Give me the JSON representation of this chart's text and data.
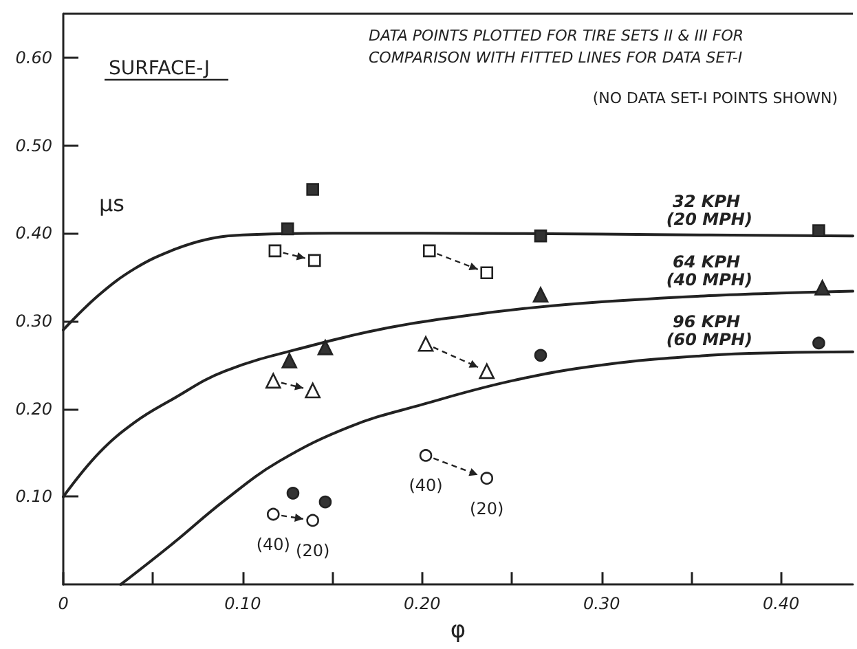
{
  "chart_data": {
    "type": "scatter",
    "title": "SURFACE-J",
    "xlabel": "φ",
    "ylabel": "μs",
    "annotations": [
      "DATA POINTS PLOTTED FOR TIRE SETS II & III FOR COMPARISON WITH FITTED LINES FOR DATA SET-I",
      "(NO DATA SET-I POINTS SHOWN)",
      {
        "text": "(40)",
        "x": 0.117,
        "y": 0.08
      },
      {
        "text": "(20)",
        "x": 0.139,
        "y": 0.073
      },
      {
        "text": "(40)",
        "x": 0.202,
        "y": 0.147
      },
      {
        "text": "(20)",
        "x": 0.236,
        "y": 0.121
      }
    ],
    "xlim": [
      0,
      0.44
    ],
    "ylim": [
      0,
      0.65
    ],
    "xticks": [
      {
        "value": 0,
        "label": "0"
      },
      {
        "value": 0.05,
        "label": null
      },
      {
        "value": 0.1,
        "label": "0.10"
      },
      {
        "value": 0.15,
        "label": null
      },
      {
        "value": 0.2,
        "label": "0.20"
      },
      {
        "value": 0.25,
        "label": null
      },
      {
        "value": 0.3,
        "label": "0.30"
      },
      {
        "value": 0.35,
        "label": null
      },
      {
        "value": 0.4,
        "label": "0.40"
      }
    ],
    "yticks": [
      {
        "value": 0.1,
        "label": "0.10"
      },
      {
        "value": 0.2,
        "label": "0.20"
      },
      {
        "value": 0.3,
        "label": "0.30"
      },
      {
        "value": 0.4,
        "label": "0.40"
      },
      {
        "value": 0.5,
        "label": "0.50"
      },
      {
        "value": 0.6,
        "label": "0.60"
      }
    ],
    "series": [
      {
        "type": "line",
        "name": "32 KPH (20 MPH)",
        "color": "#222222",
        "marker": "none",
        "line_style": "solid",
        "x": [
          0,
          0.02,
          0.04,
          0.06,
          0.08,
          0.1,
          0.15,
          0.2,
          0.3,
          0.36,
          0.44
        ],
        "values": [
          0.29,
          0.33,
          0.36,
          0.38,
          0.393,
          0.398,
          0.4,
          0.4,
          0.399,
          0.398,
          0.397
        ]
      },
      {
        "type": "line",
        "name": "64 KPH (40 MPH)",
        "color": "#222222",
        "marker": "none",
        "line_style": "solid",
        "x": [
          0,
          0.02,
          0.04,
          0.06,
          0.09,
          0.14,
          0.18,
          0.22,
          0.26,
          0.3,
          0.36,
          0.4,
          0.44
        ],
        "values": [
          0.1,
          0.15,
          0.185,
          0.21,
          0.243,
          0.273,
          0.292,
          0.305,
          0.315,
          0.322,
          0.329,
          0.332,
          0.334
        ]
      },
      {
        "type": "line",
        "name": "96 KPH (60 MPH)",
        "color": "#222222",
        "marker": "none",
        "line_style": "solid",
        "x": [
          0.032,
          0.06,
          0.09,
          0.12,
          0.16,
          0.2,
          0.25,
          0.3,
          0.36,
          0.4,
          0.44
        ],
        "values": [
          0,
          0.045,
          0.096,
          0.14,
          0.18,
          0.205,
          0.232,
          0.25,
          0.261,
          0.264,
          0.265
        ]
      },
      {
        "type": "scatter",
        "color": "#333333",
        "marker": "square",
        "x": [
          0.125,
          0.139,
          0.266,
          0.421
        ],
        "values": [
          0.405,
          0.45,
          0.397,
          0.403
        ]
      },
      {
        "type": "scatter",
        "color": "#ffffff",
        "marker": "square",
        "x": [
          0.118,
          0.14,
          0.204,
          0.236
        ],
        "values": [
          0.38,
          0.369,
          0.38,
          0.355
        ]
      },
      {
        "type": "scatter",
        "color": "#333333",
        "marker": "triangle",
        "x": [
          0.126,
          0.146,
          0.266,
          0.423
        ],
        "values": [
          0.255,
          0.27,
          0.33,
          0.338
        ]
      },
      {
        "type": "scatter",
        "color": "#ffffff",
        "marker": "triangle",
        "x": [
          0.117,
          0.139,
          0.202,
          0.236
        ],
        "values": [
          0.232,
          0.221,
          0.274,
          0.243
        ]
      },
      {
        "type": "scatter",
        "color": "#333333",
        "marker": "circle",
        "x": [
          0.128,
          0.146,
          0.266,
          0.421
        ],
        "values": [
          0.104,
          0.094,
          0.261,
          0.275
        ]
      },
      {
        "type": "scatter",
        "color": "#ffffff",
        "marker": "circle",
        "x": [
          0.117,
          0.139,
          0.202,
          0.236
        ],
        "values": [
          0.08,
          0.073,
          0.147,
          0.121
        ]
      }
    ]
  }
}
